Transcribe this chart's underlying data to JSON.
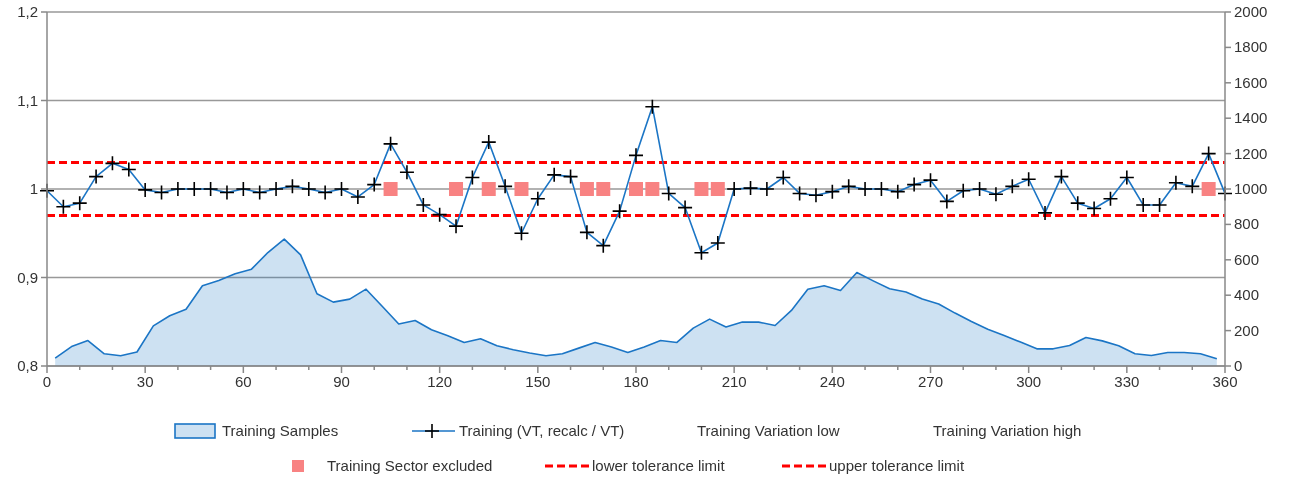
{
  "chart_data": {
    "type": "line",
    "xlim": [
      0,
      360
    ],
    "xticks": [
      0,
      {
        "value": 10,
        "label": null
      },
      {
        "value": 20,
        "label": null
      },
      30,
      {
        "value": 40,
        "label": null
      },
      {
        "value": 50,
        "label": null
      },
      60,
      {
        "value": 70,
        "label": null
      },
      {
        "value": 80,
        "label": null
      },
      90,
      {
        "value": 100,
        "label": null
      },
      {
        "value": 110,
        "label": null
      },
      120,
      {
        "value": 130,
        "label": null
      },
      {
        "value": 140,
        "label": null
      },
      150,
      {
        "value": 160,
        "label": null
      },
      {
        "value": 170,
        "label": null
      },
      180,
      {
        "value": 190,
        "label": null
      },
      {
        "value": 200,
        "label": null
      },
      210,
      {
        "value": 220,
        "label": null
      },
      {
        "value": 230,
        "label": null
      },
      240,
      {
        "value": 250,
        "label": null
      },
      {
        "value": 260,
        "label": null
      },
      270,
      {
        "value": 280,
        "label": null
      },
      {
        "value": 290,
        "label": null
      },
      300,
      {
        "value": 310,
        "label": null
      },
      {
        "value": 320,
        "label": null
      },
      330,
      {
        "value": 340,
        "label": null
      },
      {
        "value": 350,
        "label": null
      },
      360
    ],
    "ylim": [
      0.8,
      1.2
    ],
    "yticks": [
      {
        "value": 0.8,
        "label": "0,8"
      },
      {
        "value": 0.9,
        "label": "0,9"
      },
      {
        "value": 1,
        "label": "1"
      },
      {
        "value": 1.1,
        "label": "1,1"
      },
      {
        "value": 1.2,
        "label": "1,2"
      }
    ],
    "y2lim": [
      0,
      2000
    ],
    "y2ticks": [
      0,
      200,
      400,
      600,
      800,
      1000,
      1200,
      1400,
      1600,
      1800,
      2000
    ],
    "grid": "y",
    "legend": "bottom",
    "annotations": [
      "Training Variation low",
      "Training Variation high"
    ],
    "x": [
      0,
      5,
      10,
      15,
      20,
      25,
      30,
      35,
      40,
      45,
      50,
      55,
      60,
      65,
      70,
      75,
      80,
      85,
      90,
      95,
      100,
      105,
      110,
      115,
      120,
      125,
      130,
      135,
      140,
      145,
      150,
      155,
      160,
      165,
      170,
      175,
      180,
      185,
      190,
      195,
      200,
      205,
      210,
      215,
      220,
      225,
      230,
      235,
      240,
      245,
      250,
      255,
      260,
      265,
      270,
      275,
      280,
      285,
      290,
      295,
      300,
      305,
      310,
      315,
      320,
      325,
      330,
      335,
      340,
      345,
      350,
      355,
      360
    ],
    "series": [
      {
        "name": "Training Samples",
        "type": "area",
        "axis": "y2",
        "color": "#1b75c5",
        "x": [
          2.5,
          7.5,
          12.5,
          17.5,
          22.5,
          27.5,
          32.5,
          37.5,
          42.5,
          47.5,
          52.5,
          57.5,
          62.5,
          67.5,
          72.5,
          77.5,
          82.5,
          87.5,
          92.5,
          97.5,
          102.5,
          107.5,
          112.5,
          117.5,
          122.5,
          127.5,
          132.5,
          137.5,
          142.5,
          147.5,
          152.5,
          157.5,
          162.5,
          167.5,
          172.5,
          177.5,
          182.5,
          187.5,
          192.5,
          197.5,
          202.5,
          207.5,
          212.5,
          217.5,
          222.5,
          227.5,
          232.5,
          237.5,
          242.5,
          247.5,
          252.5,
          257.5,
          262.5,
          267.5,
          272.5,
          277.5,
          282.5,
          287.5,
          292.5,
          297.5,
          302.5,
          307.5,
          312.5,
          317.5,
          322.5,
          327.5,
          332.5,
          337.5,
          342.5,
          347.5,
          352.5,
          357.5
        ],
        "values": [
          45,
          110,
          144,
          69,
          58,
          79,
          227,
          284,
          321,
          453,
          483,
          521,
          547,
          641,
          717,
          628,
          408,
          361,
          378,
          434,
          336,
          237,
          257,
          205,
          171,
          133,
          154,
          114,
          92,
          73,
          58,
          69,
          101,
          133,
          107,
          76,
          107,
          144,
          133,
          214,
          265,
          220,
          248,
          248,
          229,
          314,
          434,
          453,
          427,
          528,
          481,
          436,
          418,
          378,
          350,
          299,
          251,
          208,
          172,
          135,
          97,
          97,
          116,
          161,
          142,
          114,
          69,
          59,
          76,
          76,
          69,
          41
        ]
      },
      {
        "name": "Training (VT, recalc / VT)",
        "color": "#1b75c5",
        "marker": "cross",
        "values": [
          0.998,
          0.98,
          0.984,
          1.014,
          1.029,
          1.022,
          0.999,
          0.996,
          1.0,
          1.0,
          1.0,
          0.996,
          1.0,
          0.996,
          1.0,
          1.003,
          1.0,
          0.996,
          1.0,
          0.991,
          1.005,
          1.051,
          1.019,
          0.982,
          0.971,
          0.958,
          1.013,
          1.053,
          1.003,
          0.95,
          0.989,
          1.016,
          1.014,
          0.951,
          0.936,
          0.975,
          1.038,
          1.093,
          0.995,
          0.979,
          0.928,
          0.939,
          1.0,
          1.001,
          1.0,
          1.013,
          0.995,
          0.993,
          0.997,
          1.003,
          1.0,
          1.0,
          0.997,
          1.005,
          1.01,
          0.986,
          0.998,
          1.0,
          0.994,
          1.003,
          1.011,
          0.973,
          1.014,
          0.984,
          0.978,
          0.989,
          1.013,
          0.982,
          0.982,
          1.007,
          1.003,
          1.04,
          0.995
        ]
      },
      {
        "name": "Training Sector excluded",
        "type": "scatter",
        "marker": "square",
        "color": "#f88282",
        "x": [
          105,
          125,
          135,
          145,
          165,
          170,
          180,
          185,
          200,
          205,
          355
        ],
        "values": [
          1,
          1,
          1,
          1,
          1,
          1,
          1,
          1,
          1,
          1,
          1
        ]
      }
    ],
    "ref_lines": [
      {
        "axis": "y",
        "value": 0.97,
        "label": "lower tolerance limit",
        "color": "#ff0000",
        "line_style": "dashed"
      },
      {
        "axis": "y",
        "value": 1.03,
        "label": "upper tolerance limit",
        "color": "#ff0000",
        "line_style": "dashed"
      }
    ]
  }
}
